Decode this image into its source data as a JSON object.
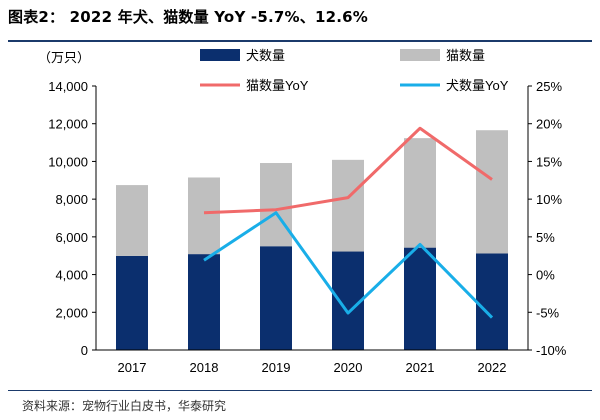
{
  "header": {
    "title": "图表2： 2022 年犬、猫数量 YoY -5.7%、12.6%"
  },
  "footer": {
    "source": "资料来源：宠物行业白皮书，华泰研究"
  },
  "chart_data": {
    "type": "bar",
    "stacked": true,
    "categories": [
      "2017",
      "2018",
      "2019",
      "2020",
      "2021",
      "2022"
    ],
    "y_unit_label": "（万只）",
    "ylim": [
      0,
      14000
    ],
    "yticks": [
      "0",
      "2,000",
      "4,000",
      "6,000",
      "8,000",
      "10,000",
      "12,000",
      "14,000"
    ],
    "y2lim": [
      -10,
      25
    ],
    "y2ticks": [
      "-10%",
      "-5%",
      "0%",
      "5%",
      "10%",
      "15%",
      "20%",
      "25%"
    ],
    "legend_position": "top",
    "series": [
      {
        "name": "犬数量",
        "kind": "bar",
        "axis": "left",
        "color": "#0b2f6e",
        "values": [
          4990,
          5085,
          5503,
          5222,
          5429,
          5119
        ]
      },
      {
        "name": "猫数量",
        "kind": "bar",
        "axis": "left",
        "color": "#bfbfbf",
        "values": [
          3756,
          4064,
          4412,
          4862,
          5806,
          6536
        ]
      },
      {
        "name": "猫数量YoY",
        "kind": "line",
        "axis": "right",
        "color": "#f06a6a",
        "values": [
          null,
          8.2,
          8.6,
          10.2,
          19.4,
          12.6
        ]
      },
      {
        "name": "犬数量YoY",
        "kind": "line",
        "axis": "right",
        "color": "#19aee8",
        "values": [
          null,
          1.9,
          8.2,
          -5.1,
          4.0,
          -5.7
        ]
      }
    ]
  }
}
